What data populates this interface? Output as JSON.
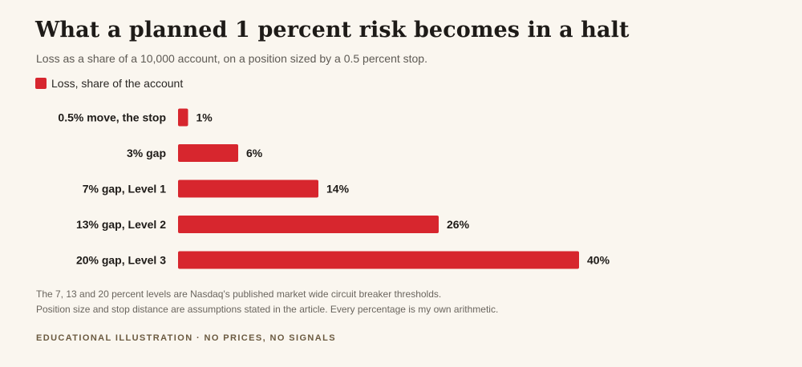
{
  "title": "What a planned 1 percent risk becomes in a halt",
  "subtitle": "Loss as a share of a 10,000 account, on a position sized by a 0.5 percent stop.",
  "legend": {
    "label": "Loss, share of the account",
    "color": "#d7262e"
  },
  "chart_data": {
    "type": "bar",
    "orientation": "horizontal",
    "categories": [
      "0.5% move, the stop",
      "3% gap",
      "7% gap, Level 1",
      "13% gap, Level 2",
      "20% gap, Level 3"
    ],
    "series": [
      {
        "name": "Loss, share of the account",
        "values": [
          1,
          6,
          14,
          26,
          40
        ],
        "labels": [
          "1%",
          "6%",
          "14%",
          "26%",
          "40%"
        ],
        "color": "#d7262e"
      }
    ],
    "xlim": [
      0,
      40
    ],
    "grid": false,
    "legend_position": "top-left"
  },
  "footnotes": [
    "The 7, 13 and 20 percent levels are Nasdaq's published market wide circuit breaker thresholds.",
    "Position size and stop distance are assumptions stated in the article. Every percentage is my own arithmetic."
  ],
  "kicker": "EDUCATIONAL ILLUSTRATION · NO PRICES, NO SIGNALS"
}
